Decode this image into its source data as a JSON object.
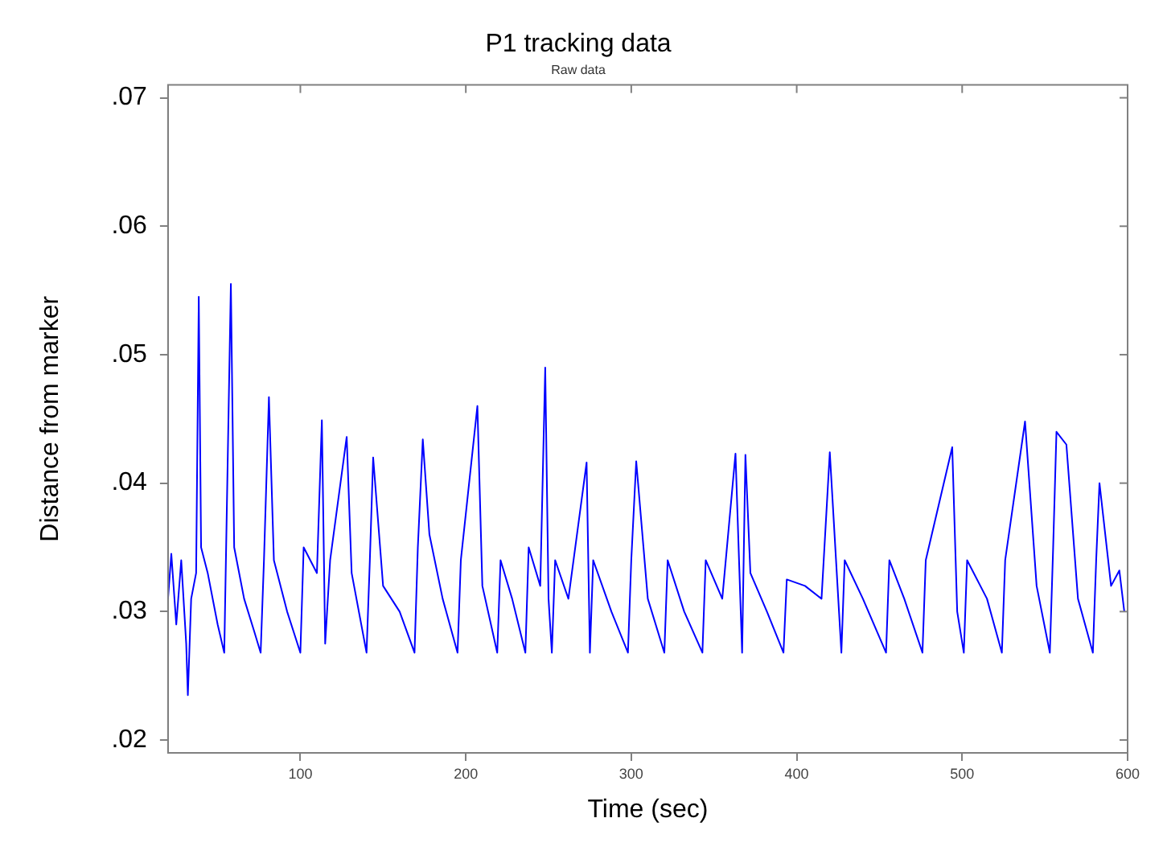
{
  "chart_data": {
    "type": "line",
    "title": "P1 tracking data",
    "subtitle": "Raw data",
    "xlabel": "Time (sec)",
    "ylabel": "Distance from marker",
    "xlim": [
      20,
      600
    ],
    "xticks": [
      100,
      200,
      300,
      400,
      500,
      600
    ],
    "ylim": [
      0.019,
      0.071
    ],
    "yticks": [
      {
        "value": 0.02,
        "label": ".02"
      },
      {
        "value": 0.03,
        "label": ".03"
      },
      {
        "value": 0.04,
        "label": ".04"
      },
      {
        "value": 0.05,
        "label": ".05"
      },
      {
        "value": 0.06,
        "label": ".06"
      },
      {
        "value": 0.07,
        "label": ".07"
      }
    ],
    "grid": false,
    "legend": false,
    "marker": "none",
    "line_style": "solid",
    "series": [
      {
        "color": "#0000ff",
        "x": [
          20,
          22,
          25,
          28,
          31,
          32,
          34,
          37,
          38.6,
          40,
          44,
          50,
          54,
          55,
          58,
          60,
          66,
          72,
          76,
          78,
          81,
          84,
          92,
          100,
          102,
          110,
          113,
          115,
          118,
          128,
          131,
          140,
          142,
          144,
          150,
          160,
          169,
          171,
          174,
          178,
          186,
          195,
          197,
          207,
          210,
          219,
          221,
          228,
          236,
          238,
          245,
          248,
          250,
          252,
          254,
          262,
          273,
          275,
          277,
          288,
          298,
          300,
          303,
          310,
          320,
          322,
          332,
          343,
          345,
          355,
          363,
          367,
          369,
          372,
          382,
          392,
          394,
          405,
          415,
          420,
          427,
          429,
          440,
          454,
          456,
          465,
          476,
          478,
          494,
          497,
          501,
          503,
          515,
          524,
          526,
          538,
          545,
          553,
          555,
          557,
          563,
          570,
          579,
          581,
          583,
          590,
          595,
          598
        ],
        "values": [
          0.031,
          0.0345,
          0.029,
          0.034,
          0.0275,
          0.0235,
          0.031,
          0.033,
          0.0545,
          0.035,
          0.033,
          0.029,
          0.0268,
          0.034,
          0.0555,
          0.035,
          0.031,
          0.0285,
          0.0268,
          0.034,
          0.0467,
          0.034,
          0.03,
          0.0268,
          0.035,
          0.033,
          0.0449,
          0.0275,
          0.034,
          0.0436,
          0.033,
          0.0268,
          0.034,
          0.042,
          0.032,
          0.03,
          0.0268,
          0.035,
          0.0434,
          0.036,
          0.031,
          0.0268,
          0.034,
          0.046,
          0.032,
          0.0268,
          0.034,
          0.031,
          0.0268,
          0.035,
          0.032,
          0.049,
          0.031,
          0.0268,
          0.034,
          0.031,
          0.0416,
          0.0268,
          0.034,
          0.03,
          0.0268,
          0.034,
          0.0417,
          0.031,
          0.0268,
          0.034,
          0.03,
          0.0268,
          0.034,
          0.031,
          0.0423,
          0.0268,
          0.0422,
          0.033,
          0.03,
          0.0268,
          0.0325,
          0.032,
          0.031,
          0.0424,
          0.0268,
          0.034,
          0.031,
          0.0268,
          0.034,
          0.031,
          0.0268,
          0.034,
          0.0428,
          0.03,
          0.0268,
          0.034,
          0.031,
          0.0268,
          0.034,
          0.0448,
          0.032,
          0.0268,
          0.035,
          0.044,
          0.043,
          0.031,
          0.0268,
          0.034,
          0.04,
          0.032,
          0.0332,
          0.03
        ]
      }
    ]
  }
}
